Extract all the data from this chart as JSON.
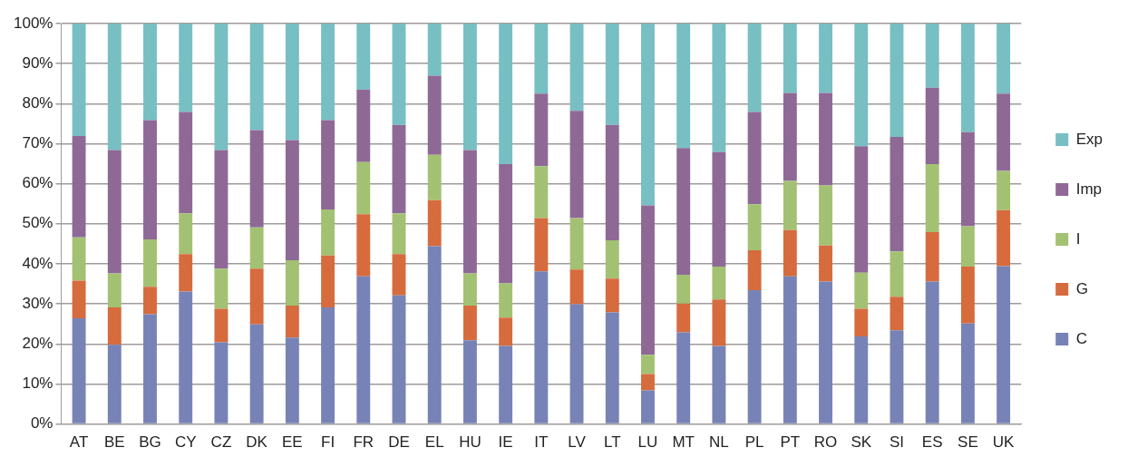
{
  "chart_data": {
    "type": "bar",
    "stacked": true,
    "categories": [
      "AT",
      "BE",
      "BG",
      "CY",
      "CZ",
      "DK",
      "EE",
      "FI",
      "FR",
      "DE",
      "EL",
      "HU",
      "IE",
      "IT",
      "LV",
      "LT",
      "LU",
      "MT",
      "NL",
      "PL",
      "PT",
      "RO",
      "SK",
      "SI",
      "ES",
      "SE",
      "UK"
    ],
    "series": [
      {
        "name": "C",
        "color": "#7783b6",
        "values": [
          26.4,
          19.8,
          27.4,
          33.1,
          20.4,
          24.9,
          21.6,
          29.1,
          36.9,
          32.1,
          44.4,
          20.9,
          19.5,
          38.1,
          29.9,
          27.9,
          8.4,
          22.9,
          19.5,
          33.4,
          36.9,
          35.6,
          21.9,
          23.4,
          35.6,
          25.1,
          39.4
        ]
      },
      {
        "name": "G",
        "color": "#d66b3e",
        "values": [
          9.4,
          9.3,
          6.9,
          9.3,
          8.4,
          13.9,
          8.0,
          13.0,
          15.5,
          10.3,
          11.5,
          8.7,
          7.1,
          13.3,
          8.7,
          8.4,
          4.1,
          7.2,
          11.6,
          10.0,
          11.5,
          9.0,
          6.9,
          8.4,
          12.3,
          14.2,
          14.0
        ]
      },
      {
        "name": "I",
        "color": "#a3c173",
        "values": [
          10.8,
          8.5,
          11.8,
          10.2,
          10.0,
          10.3,
          11.3,
          11.5,
          13.0,
          10.2,
          11.3,
          8.0,
          8.5,
          13.0,
          12.8,
          9.6,
          4.8,
          7.2,
          8.2,
          11.5,
          12.3,
          15.0,
          9.0,
          11.3,
          17.0,
          10.1,
          9.8
        ]
      },
      {
        "name": "Imp",
        "color": "#8e6996",
        "values": [
          25.3,
          30.8,
          29.8,
          25.3,
          29.6,
          24.3,
          30.0,
          22.3,
          18.1,
          22.1,
          19.8,
          30.8,
          29.8,
          18.1,
          26.8,
          28.8,
          37.3,
          31.6,
          28.6,
          23.0,
          22.0,
          23.1,
          31.6,
          28.6,
          19.1,
          23.5,
          19.3
        ]
      },
      {
        "name": "Exp",
        "color": "#77bfc2",
        "values": [
          28.1,
          31.6,
          24.1,
          22.1,
          31.6,
          26.6,
          29.1,
          24.1,
          16.5,
          25.3,
          13.0,
          31.6,
          35.1,
          17.5,
          21.8,
          25.3,
          45.4,
          31.1,
          32.1,
          22.1,
          17.3,
          17.3,
          30.6,
          28.3,
          16.0,
          27.1,
          17.5
        ]
      }
    ],
    "ylim": [
      0,
      100
    ],
    "yticks": [
      {
        "value": 0,
        "label": "0%"
      },
      {
        "value": 10,
        "label": "10%"
      },
      {
        "value": 20,
        "label": "20%"
      },
      {
        "value": 30,
        "label": "30%"
      },
      {
        "value": 40,
        "label": "40%"
      },
      {
        "value": 50,
        "label": "50%"
      },
      {
        "value": 60,
        "label": "60%"
      },
      {
        "value": 70,
        "label": "70%"
      },
      {
        "value": 80,
        "label": "80%"
      },
      {
        "value": 90,
        "label": "90%"
      },
      {
        "value": 100,
        "label": "100%"
      }
    ],
    "grid": "y",
    "legend": "right"
  }
}
